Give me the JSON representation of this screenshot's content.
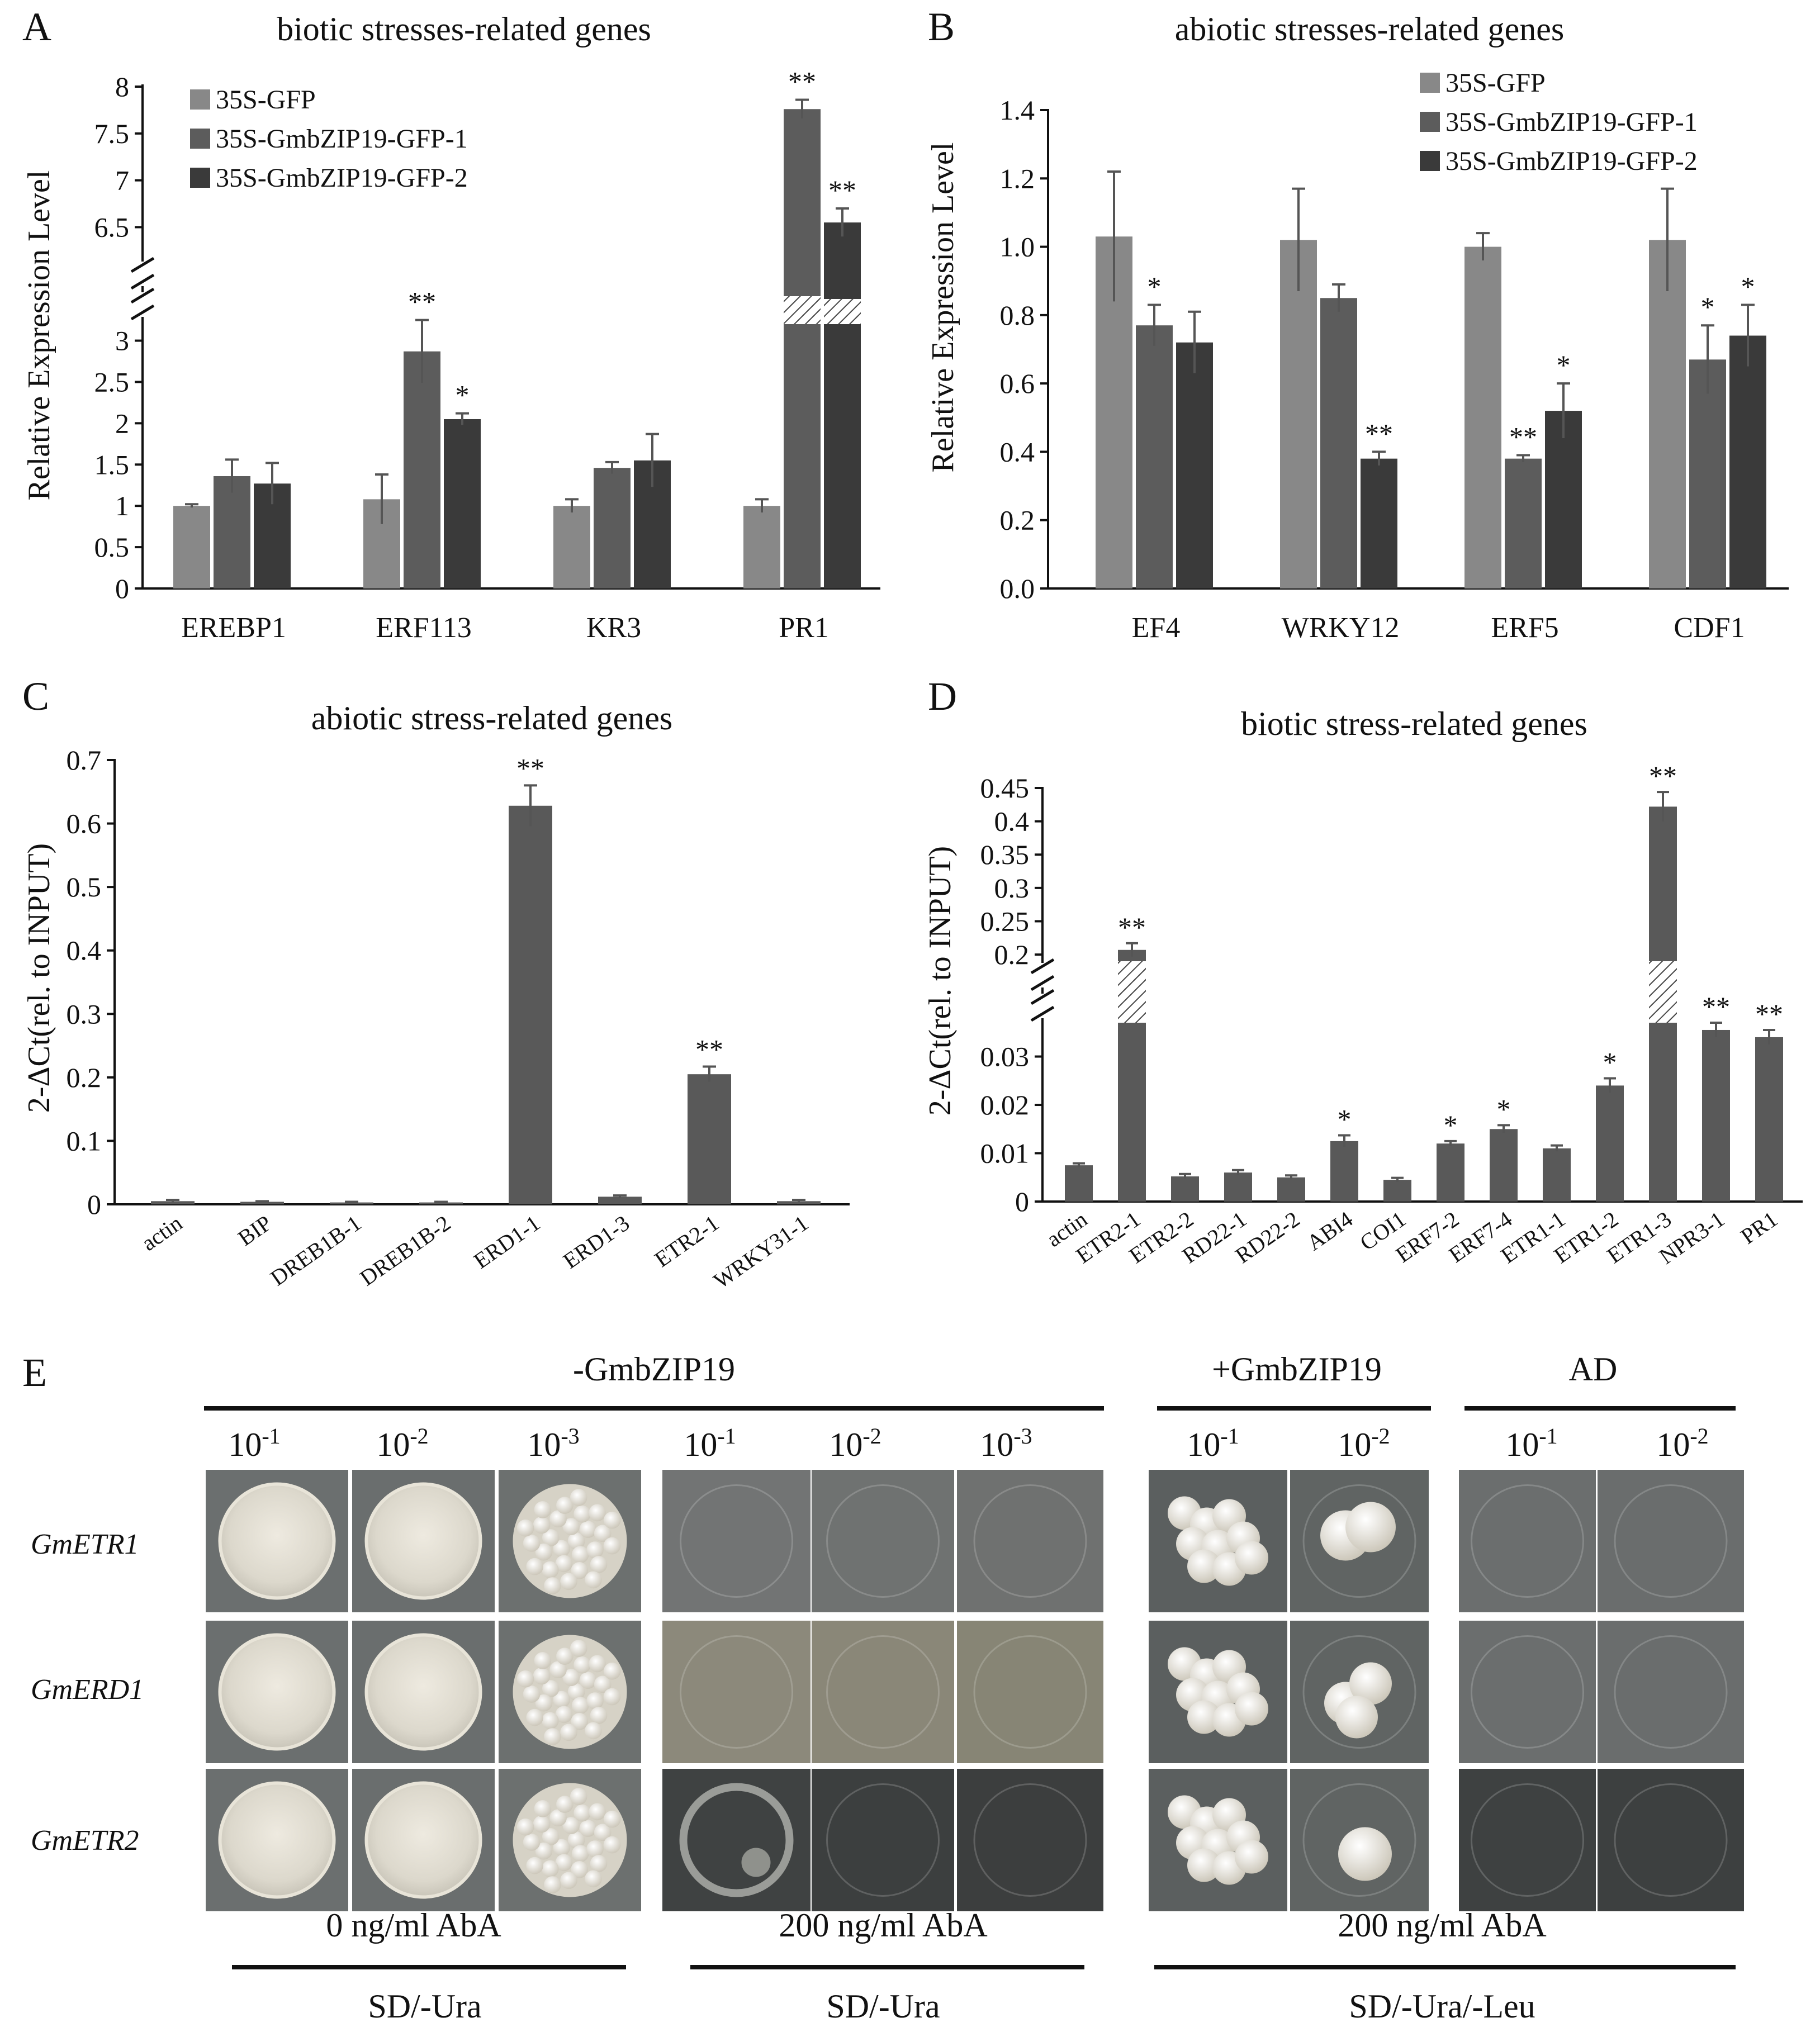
{
  "colors": {
    "gfp": "#888888",
    "line1": "#5c5c5c",
    "line2": "#3a3a3a",
    "single": "#595959"
  },
  "panels": {
    "A": {
      "letter": "A"
    },
    "B": {
      "letter": "B"
    },
    "C": {
      "letter": "C"
    },
    "D": {
      "letter": "D"
    },
    "E": {
      "letter": "E"
    }
  },
  "chart_data": [
    {
      "id": "A",
      "type": "bar",
      "title": "biotic stresses-related genes",
      "ylabel": "Relative Expression Level",
      "ylim_lower": [
        0,
        3.2
      ],
      "ylim_upper": [
        6.3,
        8.0
      ],
      "ticks_lower": [
        "0",
        "0.5",
        "1",
        "1.5",
        "2",
        "2.5",
        "3"
      ],
      "ticks_upper": [
        "6.5",
        "7",
        "7.5",
        "8"
      ],
      "categories": [
        "EREBP1",
        "ERF113",
        "KR3",
        "PR1"
      ],
      "series": [
        {
          "name": "35S-GFP",
          "values": [
            1.0,
            1.08,
            1.0,
            1.0
          ],
          "errors": [
            0.02,
            0.3,
            0.08,
            0.08
          ],
          "stars": [
            "",
            "",
            "",
            ""
          ]
        },
        {
          "name": "35S-GmbZIP19-GFP-1",
          "values": [
            1.36,
            2.87,
            1.46,
            7.76
          ],
          "errors": [
            0.2,
            0.38,
            0.07,
            0.1
          ],
          "stars": [
            "",
            "**",
            "",
            "**"
          ]
        },
        {
          "name": "35S-GmbZIP19-GFP-2",
          "values": [
            1.27,
            2.05,
            1.55,
            6.55
          ],
          "errors": [
            0.25,
            0.07,
            0.32,
            0.15
          ],
          "stars": [
            "",
            "*",
            "",
            "**"
          ]
        }
      ],
      "legend": [
        "35S-GFP",
        "35S-GmbZIP19-GFP-1",
        "35S-GmbZIP19-GFP-2"
      ]
    },
    {
      "id": "B",
      "type": "bar",
      "title": "abiotic stresses-related genes",
      "ylabel": "Relative Expression Level",
      "ylim": [
        0,
        1.4
      ],
      "ticks": [
        "0.0",
        "0.2",
        "0.4",
        "0.6",
        "0.8",
        "1.0",
        "1.2",
        "1.4"
      ],
      "categories": [
        "EF4",
        "WRKY12",
        "ERF5",
        "CDF1"
      ],
      "series": [
        {
          "name": "35S-GFP",
          "values": [
            1.03,
            1.02,
            1.0,
            1.02
          ],
          "errors": [
            0.19,
            0.15,
            0.04,
            0.15
          ],
          "stars": [
            "",
            "",
            "",
            ""
          ]
        },
        {
          "name": "35S-GmbZIP19-GFP-1",
          "values": [
            0.77,
            0.85,
            0.38,
            0.67
          ],
          "errors": [
            0.06,
            0.04,
            0.01,
            0.1
          ],
          "stars": [
            "*",
            "",
            "**",
            "*"
          ]
        },
        {
          "name": "35S-GmbZIP19-GFP-2",
          "values": [
            0.72,
            0.38,
            0.52,
            0.74
          ],
          "errors": [
            0.09,
            0.02,
            0.08,
            0.09
          ],
          "stars": [
            "",
            "**",
            "*",
            "*"
          ]
        }
      ],
      "legend": [
        "35S-GFP",
        "35S-GmbZIP19-GFP-1",
        "35S-GmbZIP19-GFP-2"
      ]
    },
    {
      "id": "C",
      "type": "bar",
      "title": "abiotic stress-related genes",
      "ylabel": "2-ΔCt(rel. to INPUT)",
      "ylim": [
        0,
        0.7
      ],
      "ticks": [
        "0",
        "0.1",
        "0.2",
        "0.3",
        "0.4",
        "0.5",
        "0.6",
        "0.7"
      ],
      "categories": [
        "actin",
        "BIP",
        "DREB1B-1",
        "DREB1B-2",
        "ERD1-1",
        "ERD1-3",
        "ETR2-1",
        "WRKY31-1"
      ],
      "values": [
        0.005,
        0.004,
        0.003,
        0.003,
        0.628,
        0.012,
        0.205,
        0.005
      ],
      "errors": [
        0.002,
        0.001,
        0.001,
        0.001,
        0.032,
        0.002,
        0.012,
        0.002
      ],
      "stars": [
        "",
        "",
        "",
        "",
        "**",
        "",
        "**",
        ""
      ]
    },
    {
      "id": "D",
      "type": "bar",
      "title": "biotic stress-related genes",
      "ylabel": "2-ΔCt(rel. to INPUT)",
      "ylim_lower": [
        0,
        0.037
      ],
      "ylim_upper": [
        0.19,
        0.45
      ],
      "ticks_lower": [
        "0",
        "0.01",
        "0.02",
        "0.03"
      ],
      "ticks_upper": [
        "0.2",
        "0.25",
        "0.3",
        "0.35",
        "0.4",
        "0.45"
      ],
      "categories": [
        "actin",
        "ETR2-1",
        "ETR2-2",
        "RD22-1",
        "RD22-2",
        "ABI4",
        "COI1",
        "ERF7-2",
        "ERF7-4",
        "ETR1-1",
        "ETR1-2",
        "ETR1-3",
        "NPR3-1",
        "PR1"
      ],
      "values": [
        0.0075,
        0.207,
        0.0052,
        0.006,
        0.005,
        0.0125,
        0.0045,
        0.012,
        0.015,
        0.011,
        0.024,
        0.422,
        0.0355,
        0.034
      ],
      "errors": [
        0.0004,
        0.01,
        0.0005,
        0.0005,
        0.0004,
        0.0012,
        0.0004,
        0.0005,
        0.0008,
        0.0006,
        0.0015,
        0.022,
        0.0015,
        0.0015
      ],
      "stars": [
        "",
        "**",
        "",
        "",
        "",
        "*",
        "",
        "*",
        "*",
        "",
        "*",
        "**",
        "**",
        "**"
      ]
    }
  ],
  "panelE": {
    "groups": {
      "minus": "-GmbZIP19",
      "plus": "+GmbZIP19",
      "ad": "AD"
    },
    "dilutions": {
      "d1": "10",
      "d1_exp": "-1",
      "d2": "10",
      "d2_exp": "-2",
      "d3": "10",
      "d3_exp": "-3"
    },
    "genes": [
      "GmETR1",
      "GmERD1",
      "GmETR2"
    ],
    "aba": {
      "a0": "0 ng/ml AbA",
      "a200": "200 ng/ml AbA",
      "a200b": "200 ng/ml AbA"
    },
    "media": {
      "m1": "SD/-Ura",
      "m2": "SD/-Ura",
      "m3": "SD/-Ura/-Leu"
    }
  }
}
